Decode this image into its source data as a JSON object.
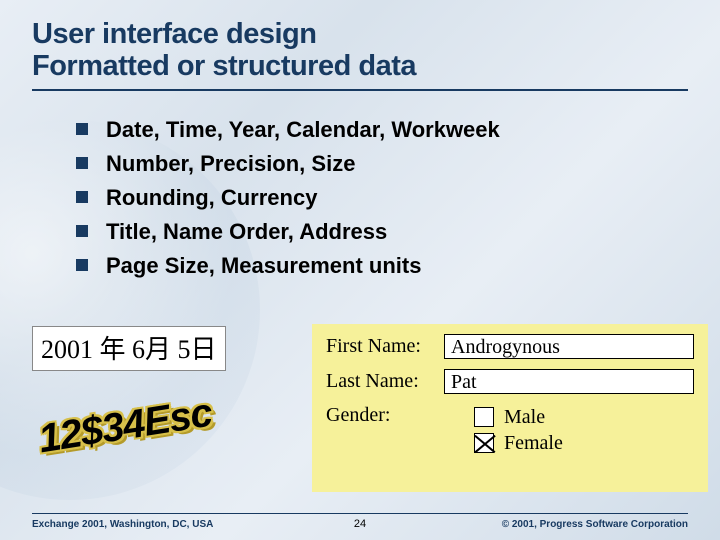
{
  "title": {
    "line1": "User interface design",
    "line2": "Formatted or structured data"
  },
  "bullets": [
    "Date, Time, Year, Calendar, Workweek",
    "Number, Precision, Size",
    "Rounding, Currency",
    "Title, Name Order, Address",
    "Page Size, Measurement units"
  ],
  "examples": {
    "date_text": "2001 年 6月 5日",
    "price_text": "12$34Esc",
    "form": {
      "first_name_label": "First Name:",
      "first_name_value": "Androgynous",
      "last_name_label": "Last Name:",
      "last_name_value": "Pat",
      "gender_label": "Gender:",
      "male_label": "Male",
      "female_label": "Female",
      "male_checked": false,
      "female_checked": true
    }
  },
  "footer": {
    "left": "Exchange 2001, Washington, DC, USA",
    "page": "24",
    "right": "© 2001, Progress Software Corporation"
  },
  "colors": {
    "heading": "#183a61",
    "bullet_square": "#183a61",
    "form_bg": "#f6f19a",
    "price_outline": "#d7c04a"
  }
}
